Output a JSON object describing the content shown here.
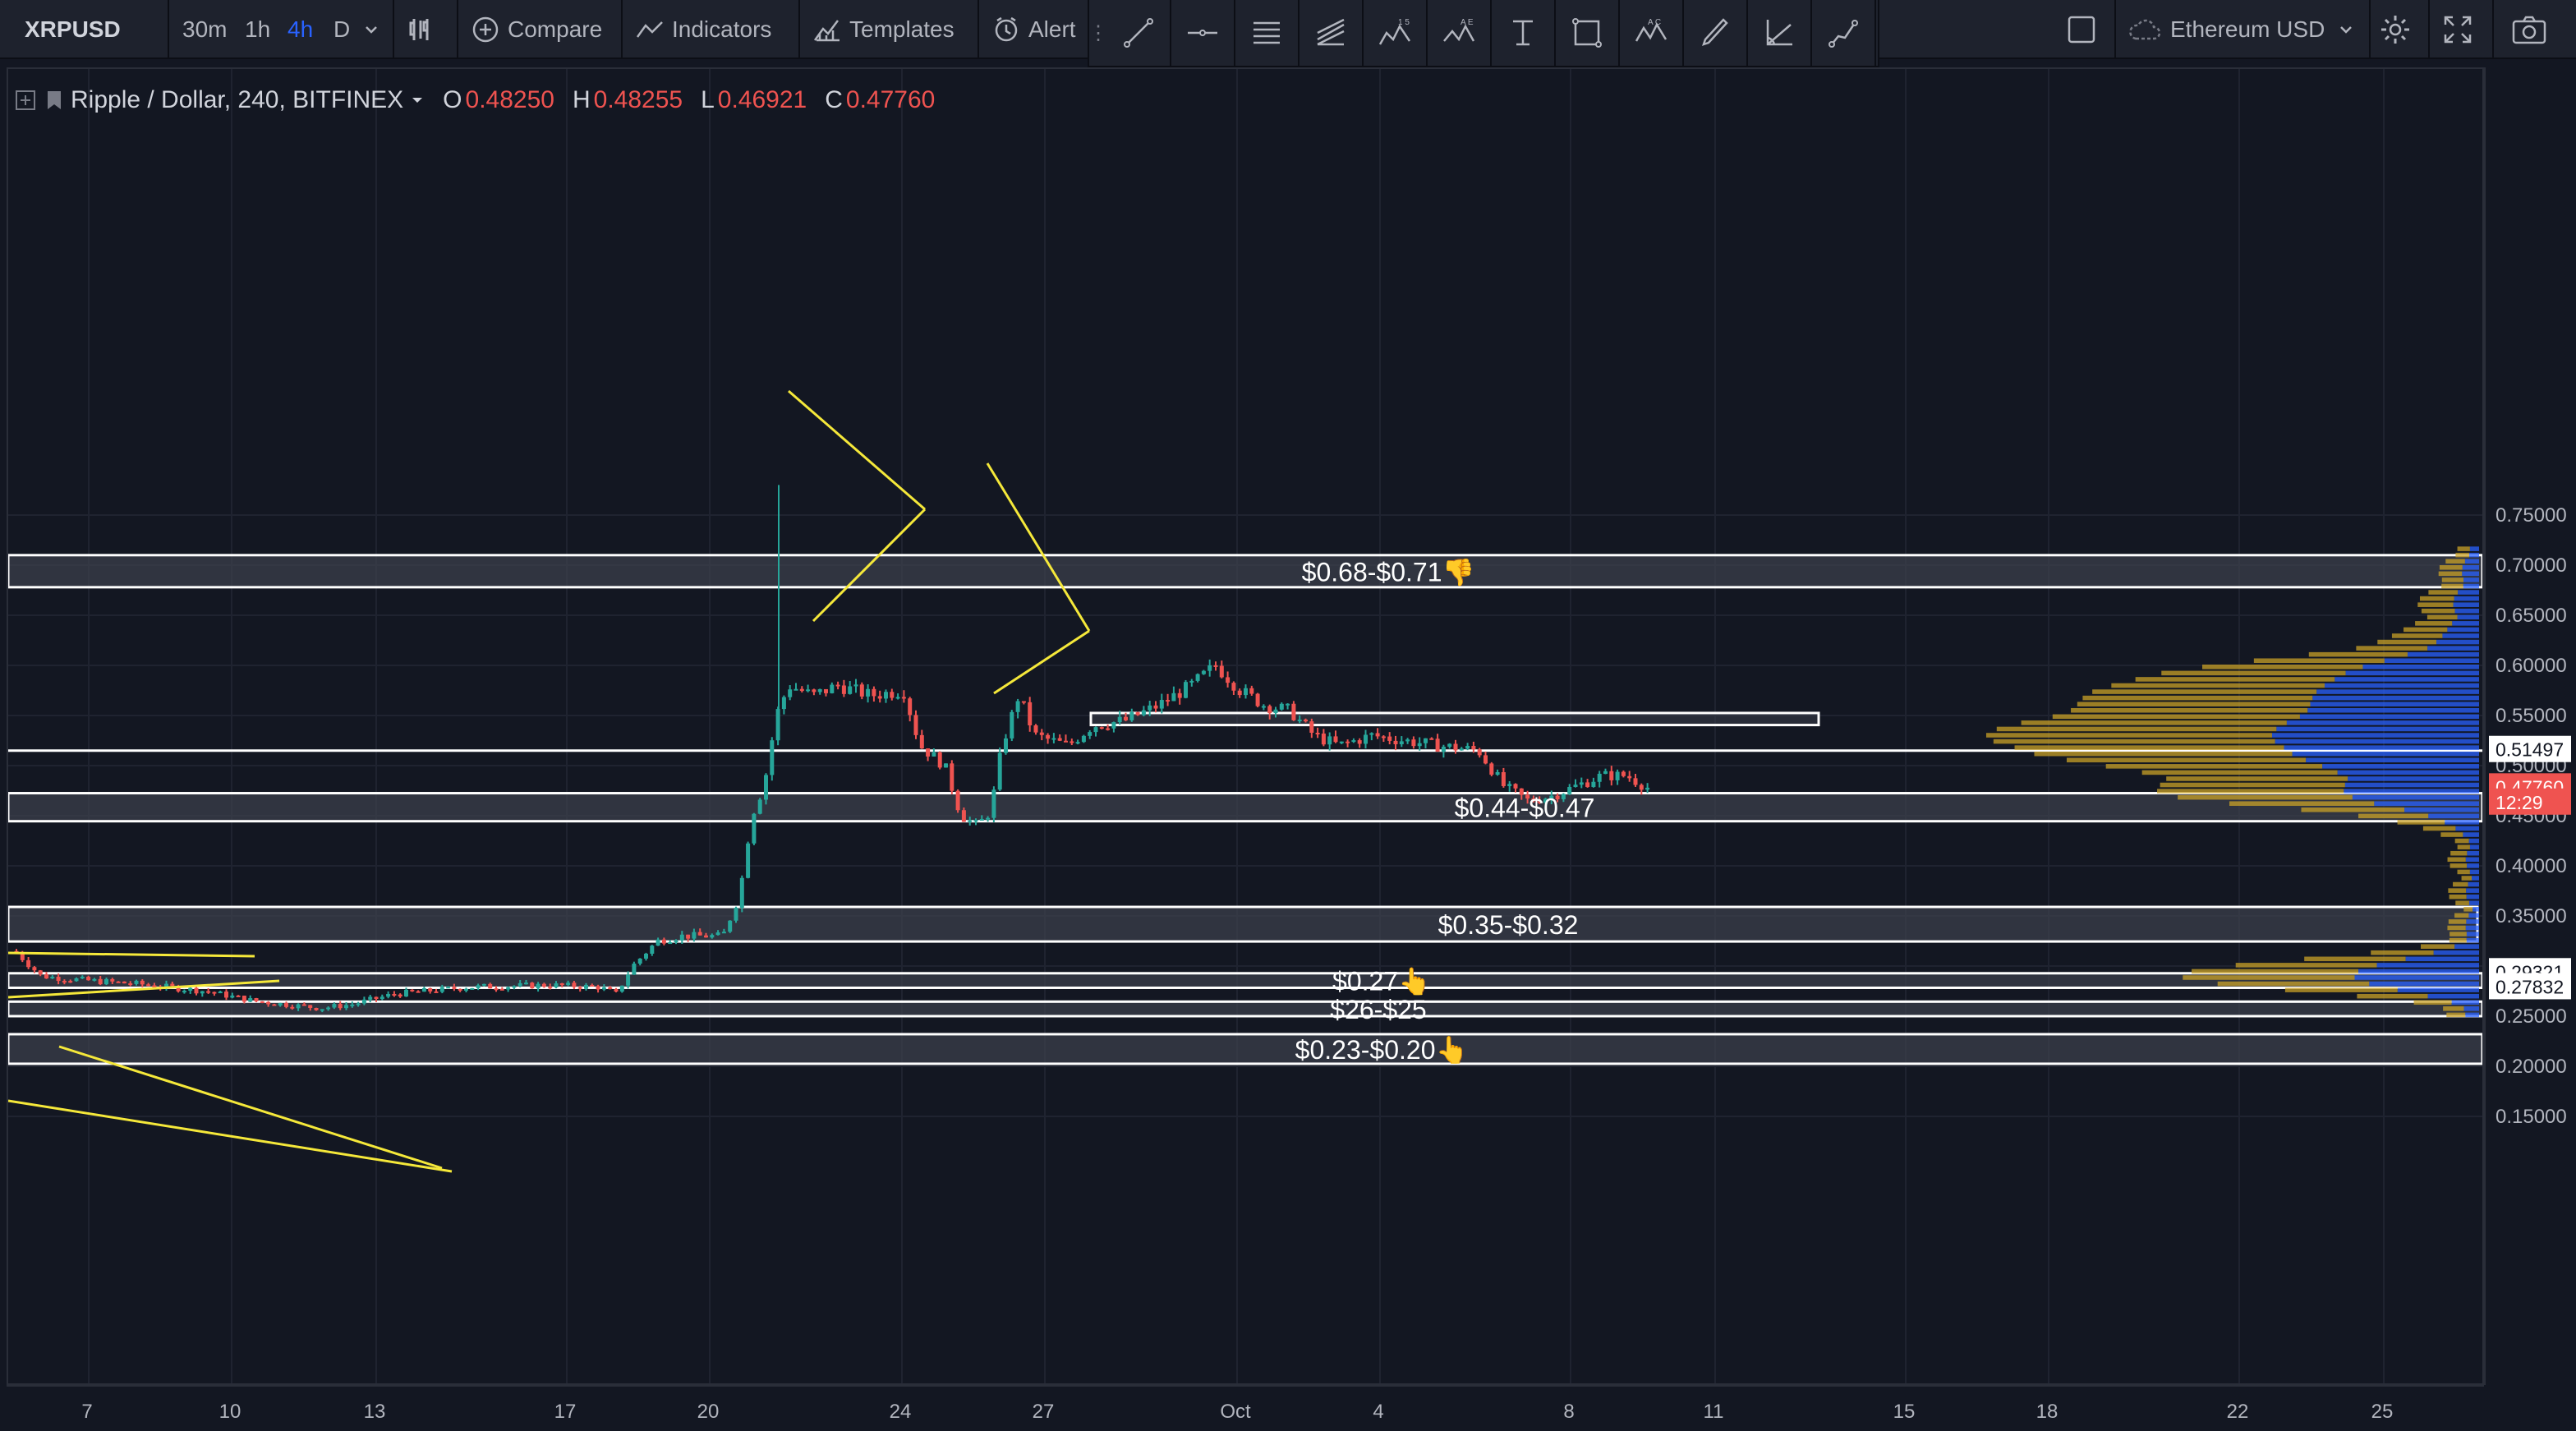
{
  "toolbar": {
    "symbol": "XRPUSD",
    "intervals": [
      "30m",
      "1h",
      "4h",
      "D"
    ],
    "active_interval": "4h",
    "compare_label": "Compare",
    "indicators_label": "Indicators",
    "templates_label": "Templates",
    "alert_label": "Alert",
    "currency_label": "Ethereum USD"
  },
  "legend": {
    "title": "Ripple / Dollar, 240, BITFINEX",
    "open_label": "O",
    "open": "0.48250",
    "high_label": "H",
    "high": "0.48255",
    "low_label": "L",
    "low": "0.46921",
    "close_label": "C",
    "close": "0.47760"
  },
  "price_axis": {
    "ticks": [
      "0.75000",
      "0.70000",
      "0.65000",
      "0.60000",
      "0.55000",
      "0.50000",
      "0.45000",
      "0.40000",
      "0.35000",
      "0.25000",
      "0.20000",
      "0.15000"
    ],
    "tick_values": [
      0.75,
      0.7,
      0.65,
      0.6,
      0.55,
      0.5,
      0.45,
      0.4,
      0.35,
      0.25,
      0.2,
      0.15
    ],
    "markers": [
      {
        "text": "0.51497",
        "value": 0.51497,
        "bg": "#ffffff",
        "fg": "#131722"
      },
      {
        "text": "0.47760",
        "value": 0.4776,
        "bg": "#ef5350",
        "fg": "#ffffff"
      },
      {
        "text": "12:29",
        "value": 0.4625,
        "bg": "#ef5350",
        "fg": "#ffffff"
      },
      {
        "text": "0.29321",
        "value": 0.29321,
        "bg": "#ffffff",
        "fg": "#131722"
      },
      {
        "text": "0.27832",
        "value": 0.27832,
        "bg": "#ffffff",
        "fg": "#131722"
      }
    ]
  },
  "time_axis": {
    "ticks": [
      "7",
      "10",
      "13",
      "17",
      "20",
      "24",
      "27",
      "Oct",
      "4",
      "8",
      "11",
      "15",
      "18",
      "22",
      "25"
    ]
  },
  "zones": [
    {
      "label": "$0.68-$0.71👎",
      "top": 0.71,
      "bottom": 0.678
    },
    {
      "label": "$0.44-$0.47",
      "top": 0.4725,
      "bottom": 0.4445
    },
    {
      "label": "$0.35-$0.32",
      "top": 0.359,
      "bottom": 0.3245
    },
    {
      "label": "$0.27👆",
      "top": 0.2928,
      "bottom": 0.2783
    },
    {
      "label": "$26-$25",
      "top": 0.2645,
      "bottom": 0.25
    },
    {
      "label": "$0.23-$0.20👆",
      "top": 0.232,
      "bottom": 0.2025
    }
  ],
  "colors": {
    "background": "#131722",
    "up": "#26a69a",
    "down": "#ef5350",
    "trend_lines": "#f5e83a",
    "volume_profile_up": "#2962ff",
    "volume_profile_down": "#c9a227",
    "zone_fill": "#3d424d"
  },
  "icons": [
    "chart-style-icon",
    "compare-plus-icon",
    "indicators-icon",
    "templates-icon",
    "alert-clock-icon",
    "settings-gear-icon",
    "fullscreen-icon",
    "camera-icon"
  ]
}
